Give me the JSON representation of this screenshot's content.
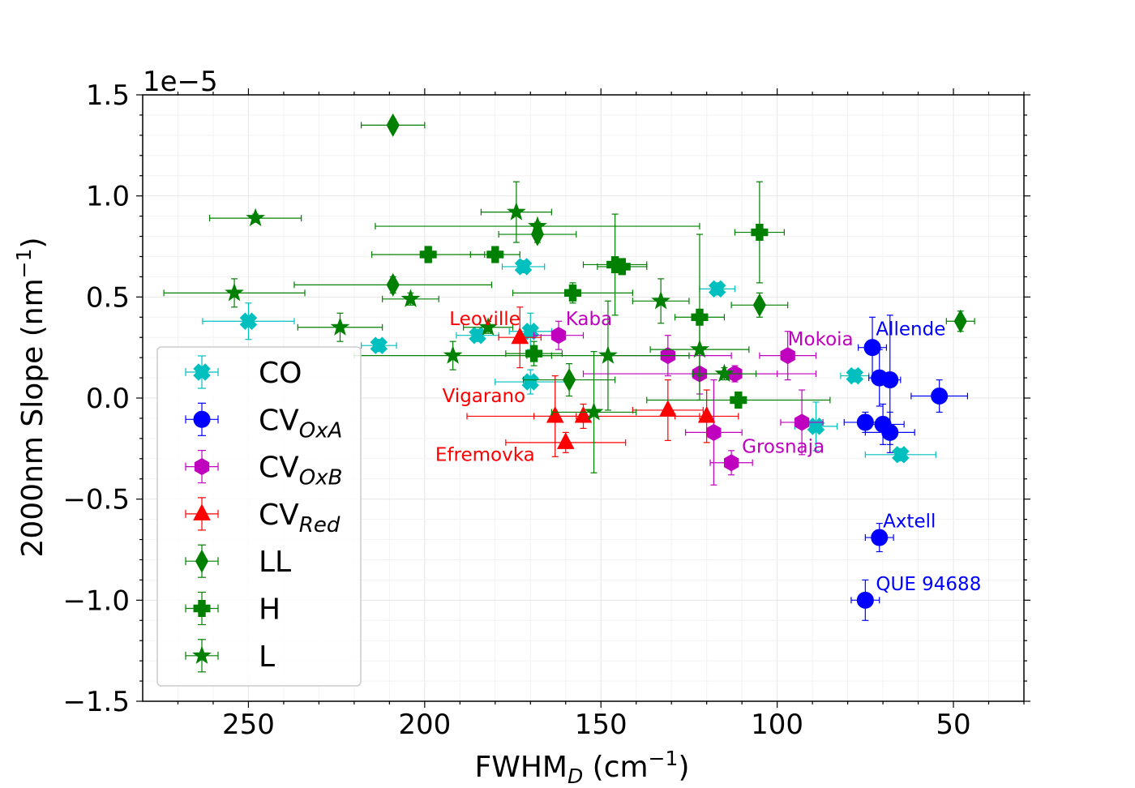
{
  "chart_data": {
    "type": "scatter",
    "xlabel_main": "FWHM",
    "xlabel_sub": "D",
    "xlabel_unit_open": " (cm",
    "xlabel_sup": "−1",
    "xlabel_close": ")",
    "ylabel_main": "2000nm Slope (nm",
    "ylabel_sup": "−1",
    "ylabel_close": ")",
    "y_offset_text": "1e−5",
    "xlim": [
      280,
      30
    ],
    "ylim": [
      -1.5,
      1.5
    ],
    "x_ticks": [
      250,
      200,
      150,
      100,
      50
    ],
    "y_ticks": [
      1.5,
      1.0,
      0.5,
      0.0,
      -0.5,
      -1.0,
      -1.5
    ],
    "y_tick_labels": [
      "1.5",
      "1.0",
      "0.5",
      "0.0",
      "−0.5",
      "−1.0",
      "−1.5"
    ],
    "x_tick_labels": [
      "250",
      "200",
      "150",
      "100",
      "50"
    ],
    "grid": true,
    "legend_position": "lower-left",
    "series": [
      {
        "name": "CO",
        "label_main": "CO",
        "label_sub": "",
        "color": "#00bfbf",
        "marker": "x-filled",
        "points": [
          {
            "x": 250,
            "y": 0.38,
            "xerr": 13,
            "yerr": 0.09
          },
          {
            "x": 213,
            "y": 0.26,
            "xerr": 5,
            "yerr": 0.03
          },
          {
            "x": 185,
            "y": 0.31,
            "xerr": 6,
            "yerr": 0.03
          },
          {
            "x": 172,
            "y": 0.65,
            "xerr": 6,
            "yerr": 0.03
          },
          {
            "x": 170,
            "y": 0.33,
            "xerr": 6,
            "yerr": 0.09
          },
          {
            "x": 170,
            "y": 0.08,
            "xerr": 10,
            "yerr": 0.06
          },
          {
            "x": 117,
            "y": 0.54,
            "xerr": 5,
            "yerr": 0.03
          },
          {
            "x": 89,
            "y": -0.14,
            "xerr": 6,
            "yerr": 0.12
          },
          {
            "x": 78,
            "y": 0.11,
            "xerr": 4,
            "yerr": 0.03
          },
          {
            "x": 65,
            "y": -0.28,
            "xerr": 10,
            "yerr": 0.03
          }
        ]
      },
      {
        "name": "CV_OxA",
        "label_main": "CV",
        "label_sub": "OxA",
        "color": "#0000ff",
        "marker": "circle",
        "points": [
          {
            "x": 73,
            "y": 0.25,
            "xerr": 4,
            "yerr": 0.15
          },
          {
            "x": 71,
            "y": 0.1,
            "xerr": 3,
            "yerr": 0.14
          },
          {
            "x": 68,
            "y": 0.09,
            "xerr": 3,
            "yerr": 0.32
          },
          {
            "x": 54,
            "y": 0.01,
            "xerr": 8,
            "yerr": 0.08
          },
          {
            "x": 75,
            "y": -0.12,
            "xerr": 6,
            "yerr": 0.05
          },
          {
            "x": 70,
            "y": -0.13,
            "xerr": 6,
            "yerr": 0.1
          },
          {
            "x": 68,
            "y": -0.17,
            "xerr": 7,
            "yerr": 0.1
          },
          {
            "x": 71,
            "y": -0.69,
            "xerr": 4,
            "yerr": 0.07
          },
          {
            "x": 75,
            "y": -1.0,
            "xerr": 4,
            "yerr": 0.1
          }
        ]
      },
      {
        "name": "CV_OxB",
        "label_main": "CV",
        "label_sub": "OxB",
        "color": "#bf00bf",
        "marker": "hexagon",
        "points": [
          {
            "x": 162,
            "y": 0.31,
            "xerr": 7,
            "yerr": 0.07
          },
          {
            "x": 131,
            "y": 0.21,
            "xerr": 18,
            "yerr": 0.1
          },
          {
            "x": 122,
            "y": 0.12,
            "xerr": 33,
            "yerr": 0.1
          },
          {
            "x": 112,
            "y": 0.12,
            "xerr": 12,
            "yerr": 0.04
          },
          {
            "x": 97,
            "y": 0.21,
            "xerr": 8,
            "yerr": 0.12
          },
          {
            "x": 93,
            "y": -0.12,
            "xerr": 6,
            "yerr": 0.16
          },
          {
            "x": 118,
            "y": -0.17,
            "xerr": 8,
            "yerr": 0.26
          },
          {
            "x": 113,
            "y": -0.32,
            "xerr": 6,
            "yerr": 0.06
          }
        ]
      },
      {
        "name": "CV_Red",
        "label_main": "CV",
        "label_sub": "Red",
        "color": "#ff0000",
        "marker": "triangle",
        "points": [
          {
            "x": 173,
            "y": 0.3,
            "xerr": 6,
            "yerr": 0.15
          },
          {
            "x": 163,
            "y": -0.09,
            "xerr": 6,
            "yerr": 0.2
          },
          {
            "x": 155,
            "y": -0.09,
            "xerr": 33,
            "yerr": 0.06
          },
          {
            "x": 160,
            "y": -0.22,
            "xerr": 17,
            "yerr": 0.05
          },
          {
            "x": 131,
            "y": -0.06,
            "xerr": 10,
            "yerr": 0.15
          },
          {
            "x": 120,
            "y": -0.09,
            "xerr": 9,
            "yerr": 0.13
          }
        ]
      },
      {
        "name": "LL",
        "label_main": "LL",
        "label_sub": "",
        "color": "#008000",
        "marker": "diamond",
        "points": [
          {
            "x": 209,
            "y": 1.35,
            "xerr": 9,
            "yerr": 0.03
          },
          {
            "x": 168,
            "y": 0.81,
            "xerr": 11,
            "yerr": 0.04
          },
          {
            "x": 209,
            "y": 0.56,
            "xerr": 28,
            "yerr": 0.04
          },
          {
            "x": 105,
            "y": 0.46,
            "xerr": 8,
            "yerr": 0.06
          },
          {
            "x": 159,
            "y": 0.09,
            "xerr": 13,
            "yerr": 0.08
          },
          {
            "x": 48,
            "y": 0.38,
            "xerr": 4,
            "yerr": 0.05
          }
        ]
      },
      {
        "name": "H",
        "label_main": "H",
        "label_sub": "",
        "color": "#008000",
        "marker": "plus-filled",
        "points": [
          {
            "x": 199,
            "y": 0.71,
            "xerr": 16,
            "yerr": 0.04
          },
          {
            "x": 180,
            "y": 0.71,
            "xerr": 7,
            "yerr": 0.03
          },
          {
            "x": 146,
            "y": 0.66,
            "xerr": 9,
            "yerr": 0.25
          },
          {
            "x": 144,
            "y": 0.65,
            "xerr": 7,
            "yerr": 0.03
          },
          {
            "x": 158,
            "y": 0.52,
            "xerr": 17,
            "yerr": 0.05
          },
          {
            "x": 122,
            "y": 0.4,
            "xerr": 7,
            "yerr": 0.41
          },
          {
            "x": 105,
            "y": 0.82,
            "xerr": 7,
            "yerr": 0.25
          },
          {
            "x": 169,
            "y": 0.22,
            "xerr": 8,
            "yerr": 0.06
          },
          {
            "x": 111,
            "y": -0.01,
            "xerr": 26,
            "yerr": 0.04
          }
        ]
      },
      {
        "name": "L",
        "label_main": "L",
        "label_sub": "",
        "color": "#008000",
        "marker": "star",
        "points": [
          {
            "x": 248,
            "y": 0.89,
            "xerr": 13,
            "yerr": 0.02
          },
          {
            "x": 174,
            "y": 0.92,
            "xerr": 10,
            "yerr": 0.15
          },
          {
            "x": 168,
            "y": 0.85,
            "xerr": 46,
            "yerr": 0.02
          },
          {
            "x": 254,
            "y": 0.52,
            "xerr": 20,
            "yerr": 0.07
          },
          {
            "x": 204,
            "y": 0.49,
            "xerr": 8,
            "yerr": 0.03
          },
          {
            "x": 224,
            "y": 0.35,
            "xerr": 12,
            "yerr": 0.07
          },
          {
            "x": 182,
            "y": 0.35,
            "xerr": 7,
            "yerr": 0.03
          },
          {
            "x": 192,
            "y": 0.21,
            "xerr": 28,
            "yerr": 0.07
          },
          {
            "x": 148,
            "y": 0.21,
            "xerr": 23,
            "yerr": 0.27
          },
          {
            "x": 152,
            "y": -0.07,
            "xerr": 12,
            "yerr": 0.3
          },
          {
            "x": 133,
            "y": 0.48,
            "xerr": 8,
            "yerr": 0.11
          },
          {
            "x": 122,
            "y": 0.24,
            "xerr": 14,
            "yerr": 0.13
          },
          {
            "x": 115,
            "y": 0.12,
            "xerr": 9,
            "yerr": 0.03
          }
        ]
      }
    ],
    "annotations": [
      {
        "text": "Leoville",
        "x": 193,
        "y": 0.36,
        "color": "#ff0000"
      },
      {
        "text": "Kaba",
        "x": 160,
        "y": 0.36,
        "color": "#bf00bf"
      },
      {
        "text": "Vigarano",
        "x": 195,
        "y": -0.02,
        "color": "#ff0000"
      },
      {
        "text": "Efremovka",
        "x": 197,
        "y": -0.31,
        "color": "#ff0000"
      },
      {
        "text": "Mokoia",
        "x": 97,
        "y": 0.26,
        "color": "#bf00bf"
      },
      {
        "text": "Allende",
        "x": 72,
        "y": 0.31,
        "color": "#0000ff"
      },
      {
        "text": "Grosnaja",
        "x": 110,
        "y": -0.27,
        "color": "#bf00bf"
      },
      {
        "text": "Axtell",
        "x": 70,
        "y": -0.64,
        "color": "#0000ff"
      },
      {
        "text": "QUE 94688",
        "x": 72,
        "y": -0.95,
        "color": "#0000ff"
      }
    ]
  }
}
